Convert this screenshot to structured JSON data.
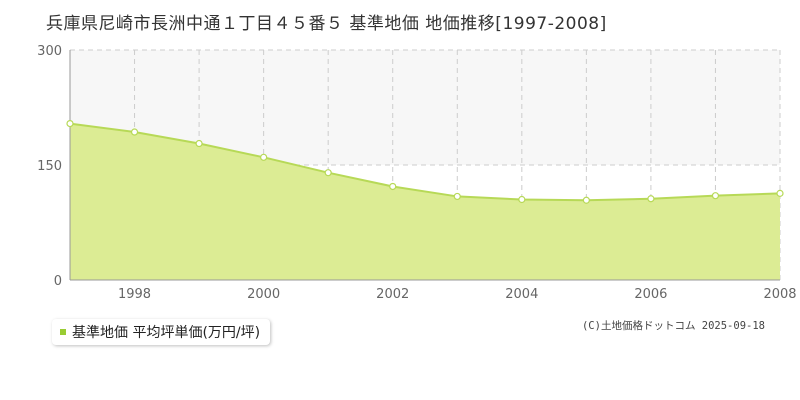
{
  "chart_data": {
    "type": "area",
    "title": "兵庫県尼崎市長洲中通１丁目４５番５ 基準地価 地価推移[1997-2008]",
    "xlabel": "",
    "ylabel": "",
    "x": [
      1997,
      1998,
      1999,
      2000,
      2001,
      2002,
      2003,
      2004,
      2005,
      2006,
      2007,
      2008
    ],
    "series": [
      {
        "name": "基準地価 平均坪単価(万円/坪)",
        "values": [
          204,
          193,
          178,
          160,
          140,
          122,
          109,
          105,
          104,
          106,
          110,
          113
        ]
      }
    ],
    "x_tick_labels": [
      "1998",
      "2000",
      "2002",
      "2004",
      "2006",
      "2008"
    ],
    "x_tick_values": [
      1998,
      2000,
      2002,
      2004,
      2006,
      2008
    ],
    "y_tick_labels": [
      "0",
      "150",
      "300"
    ],
    "y_tick_values": [
      0,
      150,
      300
    ],
    "xlim": [
      1997,
      2008
    ],
    "ylim": [
      0,
      300
    ],
    "grid": true,
    "legend_position": "bottom-left",
    "colors": {
      "fill": "#dcec94",
      "line": "#b7d957",
      "marker_stroke": "#b7d957",
      "marker_fill": "#ffffff",
      "grid": "#cccccc",
      "band": "#f7f7f7",
      "legend_swatch": "#99cc33"
    }
  },
  "legend": {
    "label": "基準地価 平均坪単価(万円/坪)"
  },
  "copyright": "(C)土地価格ドットコム 2025-09-18"
}
